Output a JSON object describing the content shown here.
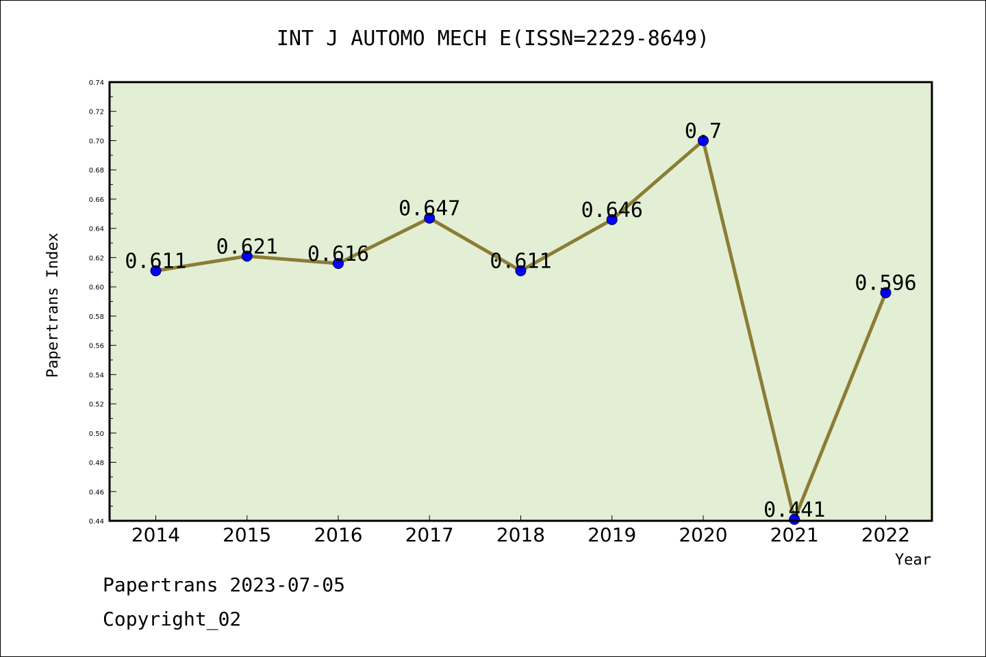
{
  "chart_data": {
    "type": "line",
    "title": "INT J AUTOMO MECH E(ISSN=2229-8649)",
    "xlabel": "Year",
    "ylabel": "Papertrans Index",
    "categories": [
      "2014",
      "2015",
      "2016",
      "2017",
      "2018",
      "2019",
      "2020",
      "2021",
      "2022"
    ],
    "series": [
      {
        "values": [
          0.611,
          0.621,
          0.616,
          0.647,
          0.611,
          0.646,
          0.7,
          0.441,
          0.596
        ],
        "labels": [
          "0.611",
          "0.621",
          "0.616",
          "0.647",
          "0.611",
          "0.646",
          "0.7",
          "0.441",
          "0.596"
        ]
      }
    ],
    "ylim": [
      0.44,
      0.74
    ],
    "yticks": [
      "0.44",
      "0.46",
      "0.48",
      "0.50",
      "0.52",
      "0.54",
      "0.56",
      "0.58",
      "0.60",
      "0.62",
      "0.64",
      "0.66",
      "0.68",
      "0.70",
      "0.72",
      "0.74"
    ],
    "grid": false,
    "colors": {
      "plot_background": "#e2efd5",
      "line": "#8b7d35",
      "marker": "#0000ff"
    }
  },
  "footer": {
    "line1": "Papertrans 2023-07-05",
    "line2": "Copyright_02"
  }
}
